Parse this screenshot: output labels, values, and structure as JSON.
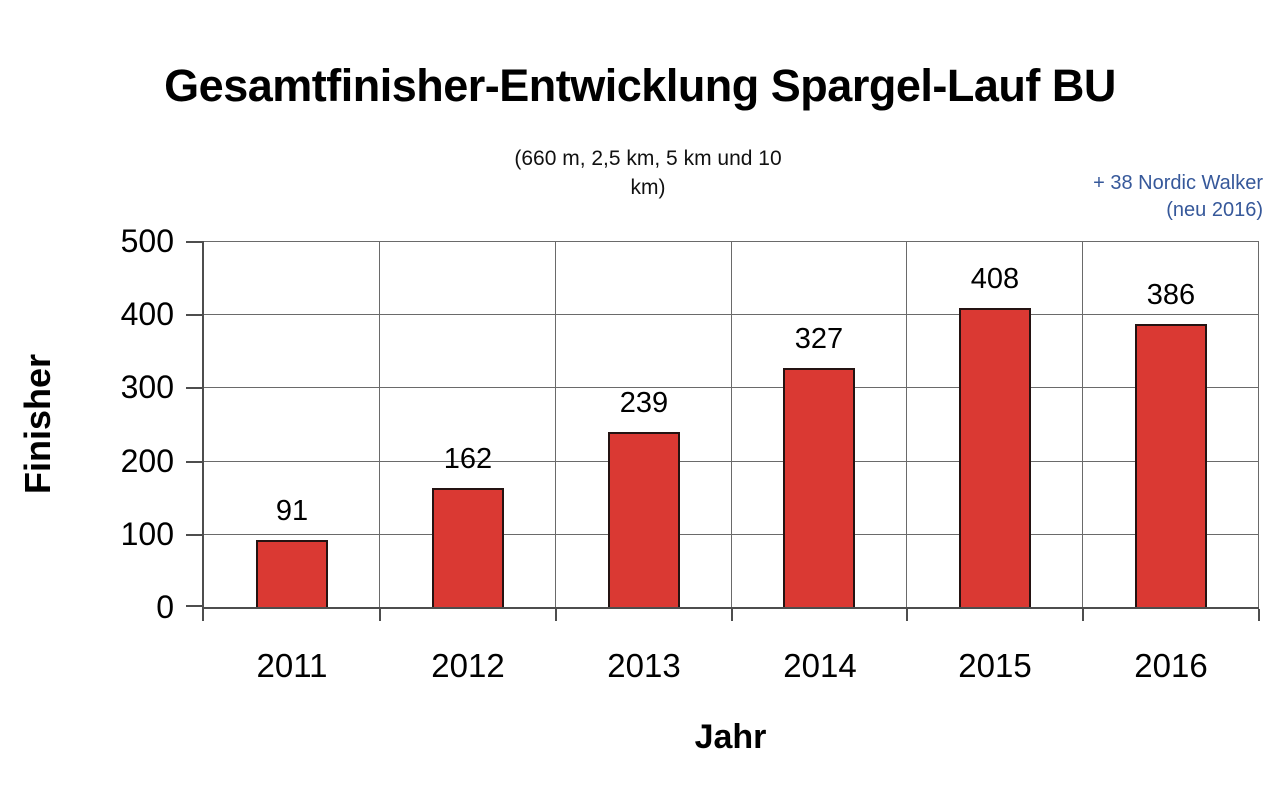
{
  "chart_data": {
    "type": "bar",
    "title": "Gesamtfinisher-Entwicklung Spargel-Lauf BU",
    "subtitle_lines": [
      "(660 m, 2,5 km, 5 km und 10",
      "km)"
    ],
    "annotation": {
      "lines": [
        "+ 38 Nordic Walker",
        "(neu 2016)"
      ],
      "color": "#36589A"
    },
    "categories": [
      "2011",
      "2012",
      "2013",
      "2014",
      "2015",
      "2016"
    ],
    "values": [
      91,
      162,
      239,
      327,
      408,
      386
    ],
    "xlabel": "Jahr",
    "ylabel": "Finisher",
    "ylim": [
      0,
      500
    ],
    "yticks": [
      0,
      100,
      200,
      300,
      400,
      500
    ],
    "bar_color": "#DA3933",
    "bar_border_color": "#241312",
    "gridline_color": "#6A6A6A",
    "axis_color": "#4D4D4D",
    "grid": true,
    "legend_position": "none"
  }
}
